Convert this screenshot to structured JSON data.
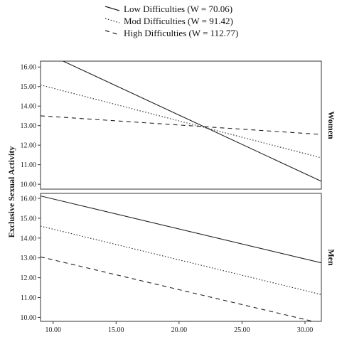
{
  "chart_data": {
    "type": "line",
    "ylabel": "Exclusive Sexual Activity",
    "legend": {
      "placement": "top-center",
      "entries": [
        {
          "label": "Low Difficulties (W = 70.06)",
          "dash": "solid"
        },
        {
          "label": "Mod Difficulties (W = 91.42)",
          "dash": "dotted"
        },
        {
          "label": "High Difficulties (W = 112.77)",
          "dash": "dashed"
        }
      ]
    },
    "xlim": [
      9.0,
      31.3
    ],
    "xticks": [
      "10.00",
      "15.00",
      "20.00",
      "25.00",
      "30.00"
    ],
    "grid": false,
    "panels": [
      {
        "name": "Women",
        "ylim": [
          9.75,
          16.3
        ],
        "yticks": [
          "10.00",
          "11.00",
          "12.00",
          "13.00",
          "14.00",
          "15.00",
          "16.00"
        ],
        "series": [
          {
            "name": "Low Difficulties (W = 70.06)",
            "dash": "solid",
            "x": [
              9.0,
              31.3
            ],
            "y": [
              16.84,
              10.15
            ]
          },
          {
            "name": "Mod Difficulties (W = 91.42)",
            "dash": "dotted",
            "x": [
              9.0,
              31.3
            ],
            "y": [
              15.08,
              11.35
            ]
          },
          {
            "name": "High Difficulties (W = 112.77)",
            "dash": "dashed",
            "x": [
              9.0,
              31.3
            ],
            "y": [
              13.5,
              12.55
            ]
          }
        ]
      },
      {
        "name": "Men",
        "ylim": [
          9.8,
          16.25
        ],
        "yticks": [
          "10.00",
          "11.00",
          "12.00",
          "13.00",
          "14.00",
          "15.00",
          "16.00"
        ],
        "series": [
          {
            "name": "Low Difficulties (W = 70.06)",
            "dash": "solid",
            "x": [
              9.0,
              31.3
            ],
            "y": [
              16.12,
              12.75
            ]
          },
          {
            "name": "Mod Difficulties (W = 91.42)",
            "dash": "dotted",
            "x": [
              9.0,
              31.3
            ],
            "y": [
              14.6,
              11.15
            ]
          },
          {
            "name": "High Difficulties (W = 112.77)",
            "dash": "dashed",
            "x": [
              9.0,
              31.3
            ],
            "y": [
              13.05,
              9.7
            ]
          }
        ]
      }
    ]
  }
}
